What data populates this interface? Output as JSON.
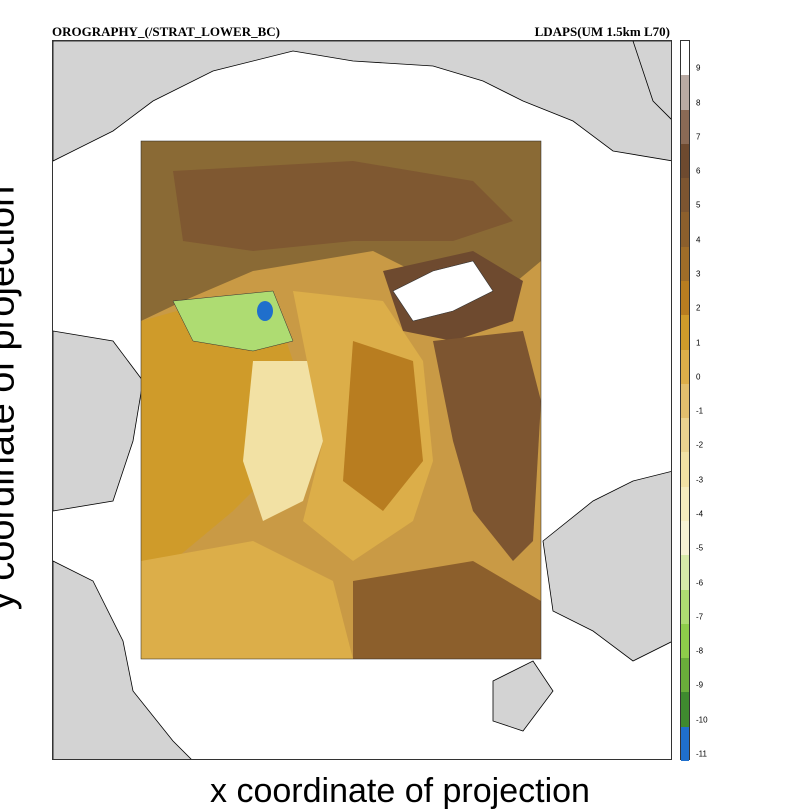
{
  "header": {
    "left_title": "OROGRAPHY_(/STRAT_LOWER_BC)",
    "right_title": "LDAPS(UM 1.5km L70)"
  },
  "axes": {
    "x_label": "x coordinate of projection",
    "y_label": "y coordinate of projection"
  },
  "colorbar": {
    "labels": [
      "9",
      "8",
      "7",
      "6",
      "5",
      "4",
      "3",
      "2",
      "1",
      "0",
      "-1",
      "-2",
      "-3",
      "-4",
      "-5",
      "-6",
      "-7",
      "-8",
      "-9",
      "-10",
      "-11"
    ],
    "colors": [
      "#ffffff",
      "#b9aaa3",
      "#8a6a55",
      "#6e4a2f",
      "#7d5530",
      "#8c5f2c",
      "#a06d28",
      "#b87d20",
      "#cf9b2a",
      "#dcae49",
      "#e2bf6d",
      "#ebd38f",
      "#f2e1a4",
      "#f6ecbe",
      "#f7f2d4",
      "#d8eaa8",
      "#aedc72",
      "#8ecd4a",
      "#6aad3a",
      "#3f8a2f",
      "#1f6fcc"
    ]
  },
  "map": {
    "land_color": "#d3d3d3",
    "sea_color": "#ffffff",
    "coastline_color": "#000000"
  }
}
